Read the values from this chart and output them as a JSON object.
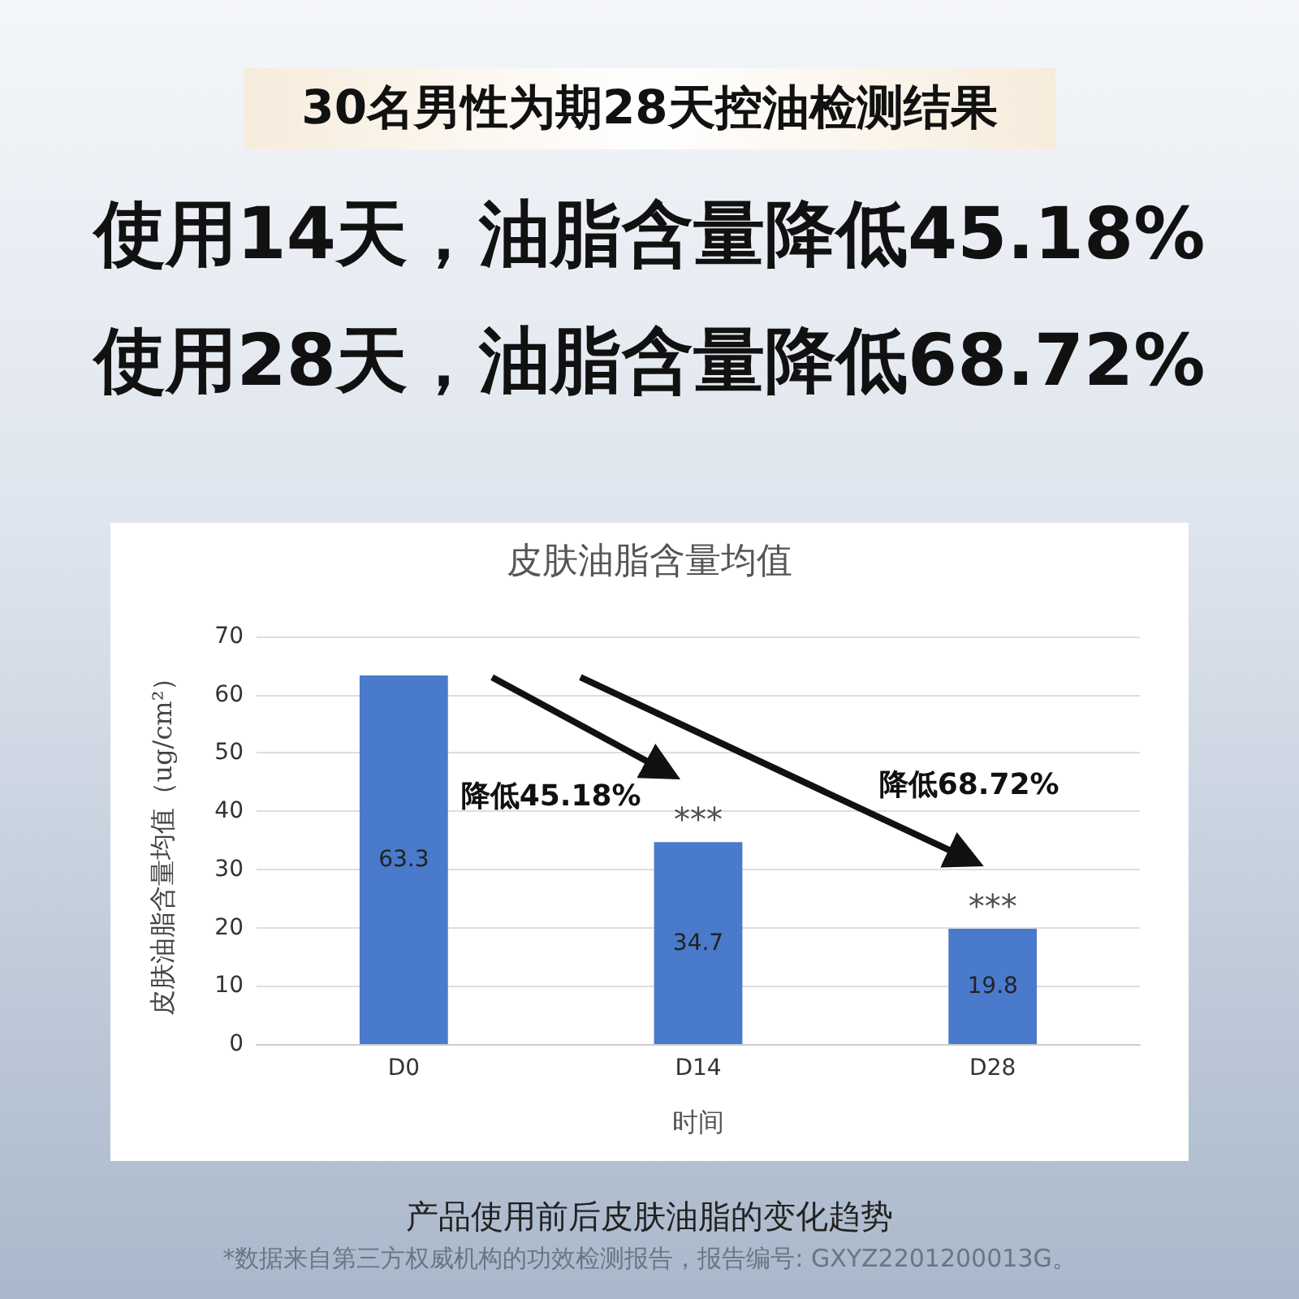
{
  "chart_data": {
    "type": "bar",
    "subtitle": "30名男性为期28天控油检测结果",
    "title": "皮肤油脂含量均值",
    "categories": [
      "D0",
      "D14",
      "D28"
    ],
    "values": [
      63.3,
      34.7,
      19.8
    ],
    "color": "#4a7acb",
    "xlabel": "时间",
    "ylabel": "皮肤油脂含量均值（ug/cm²）",
    "ylim": [
      0,
      70
    ],
    "yticks": [
      0,
      10,
      20,
      30,
      40,
      50,
      60,
      70
    ],
    "grid": "y",
    "data_labels": true,
    "annotations": [
      "使用14天，油脂含量降低45.18%",
      "使用28天，油脂含量降低68.72%",
      "降低45.18%",
      "降低68.72%",
      {
        "text": "***",
        "x": "D14",
        "y": 34.7
      },
      {
        "text": "***",
        "x": "D28",
        "y": 19.8
      },
      "产品使用前后皮肤油脂的变化趋势",
      "*数据来自第三方权威机构的功效检测报告，报告编号: GXYZ2201200013G。"
    ]
  }
}
